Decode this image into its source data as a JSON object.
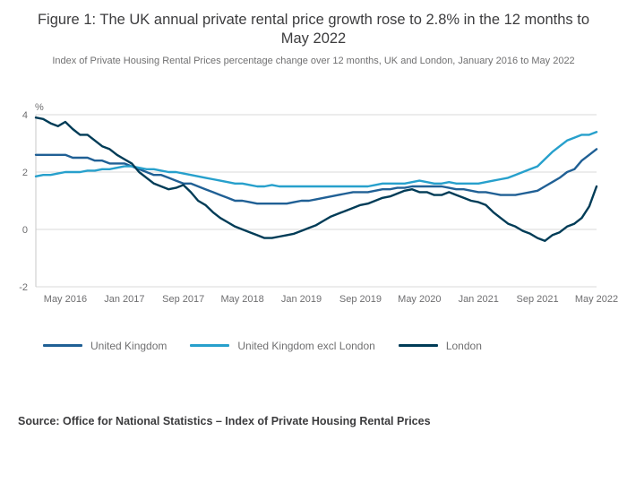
{
  "figure": {
    "source": "Source: Office for National Statistics – Index of Private Housing Rental Prices"
  },
  "chart_data": {
    "type": "line",
    "title": "Figure 1: The UK annual private rental price growth rose to 2.8% in the 12 months to May 2022",
    "subtitle": "Index of Private Housing Rental Prices percentage change over 12 months, UK and London, January 2016 to May 2022",
    "ylabel": "%",
    "ylim": [
      -2,
      4
    ],
    "yticks": [
      4,
      2,
      0,
      -2
    ],
    "grid": "horizontal",
    "legend_position": "bottom",
    "x_ticks": [
      "May 2016",
      "Jan 2017",
      "Sep 2017",
      "May 2018",
      "Jan 2019",
      "Sep 2019",
      "May 2020",
      "Jan 2021",
      "Sep 2021",
      "May 2022"
    ],
    "x": [
      "Jan 2016",
      "Feb 2016",
      "Mar 2016",
      "Apr 2016",
      "May 2016",
      "Jun 2016",
      "Jul 2016",
      "Aug 2016",
      "Sep 2016",
      "Oct 2016",
      "Nov 2016",
      "Dec 2016",
      "Jan 2017",
      "Feb 2017",
      "Mar 2017",
      "Apr 2017",
      "May 2017",
      "Jun 2017",
      "Jul 2017",
      "Aug 2017",
      "Sep 2017",
      "Oct 2017",
      "Nov 2017",
      "Dec 2017",
      "Jan 2018",
      "Feb 2018",
      "Mar 2018",
      "Apr 2018",
      "May 2018",
      "Jun 2018",
      "Jul 2018",
      "Aug 2018",
      "Sep 2018",
      "Oct 2018",
      "Nov 2018",
      "Dec 2018",
      "Jan 2019",
      "Feb 2019",
      "Mar 2019",
      "Apr 2019",
      "May 2019",
      "Jun 2019",
      "Jul 2019",
      "Aug 2019",
      "Sep 2019",
      "Oct 2019",
      "Nov 2019",
      "Dec 2019",
      "Jan 2020",
      "Feb 2020",
      "Mar 2020",
      "Apr 2020",
      "May 2020",
      "Jun 2020",
      "Jul 2020",
      "Aug 2020",
      "Sep 2020",
      "Oct 2020",
      "Nov 2020",
      "Dec 2020",
      "Jan 2021",
      "Feb 2021",
      "Mar 2021",
      "Apr 2021",
      "May 2021",
      "Jun 2021",
      "Jul 2021",
      "Aug 2021",
      "Sep 2021",
      "Oct 2021",
      "Nov 2021",
      "Dec 2021",
      "Jan 2022",
      "Feb 2022",
      "Mar 2022",
      "Apr 2022",
      "May 2022"
    ],
    "series": [
      {
        "name": "United Kingdom",
        "color": "#206095",
        "values": [
          2.6,
          2.6,
          2.6,
          2.6,
          2.6,
          2.5,
          2.5,
          2.5,
          2.4,
          2.4,
          2.3,
          2.3,
          2.3,
          2.2,
          2.1,
          2.0,
          1.9,
          1.9,
          1.8,
          1.7,
          1.6,
          1.6,
          1.5,
          1.4,
          1.3,
          1.2,
          1.1,
          1.0,
          1.0,
          0.95,
          0.9,
          0.9,
          0.9,
          0.9,
          0.9,
          0.95,
          1.0,
          1.0,
          1.05,
          1.1,
          1.15,
          1.2,
          1.25,
          1.3,
          1.3,
          1.3,
          1.35,
          1.4,
          1.4,
          1.45,
          1.45,
          1.5,
          1.5,
          1.5,
          1.5,
          1.5,
          1.45,
          1.4,
          1.4,
          1.35,
          1.3,
          1.3,
          1.25,
          1.2,
          1.2,
          1.2,
          1.25,
          1.3,
          1.35,
          1.5,
          1.65,
          1.8,
          2.0,
          2.1,
          2.4,
          2.6,
          2.8
        ]
      },
      {
        "name": "United Kingdom excl London",
        "color": "#27a0cc",
        "values": [
          1.85,
          1.9,
          1.9,
          1.95,
          2.0,
          2.0,
          2.0,
          2.05,
          2.05,
          2.1,
          2.1,
          2.15,
          2.2,
          2.2,
          2.15,
          2.1,
          2.1,
          2.05,
          2.0,
          2.0,
          1.95,
          1.9,
          1.85,
          1.8,
          1.75,
          1.7,
          1.65,
          1.6,
          1.6,
          1.55,
          1.5,
          1.5,
          1.55,
          1.5,
          1.5,
          1.5,
          1.5,
          1.5,
          1.5,
          1.5,
          1.5,
          1.5,
          1.5,
          1.5,
          1.5,
          1.5,
          1.55,
          1.6,
          1.6,
          1.6,
          1.6,
          1.65,
          1.7,
          1.65,
          1.6,
          1.6,
          1.65,
          1.6,
          1.6,
          1.6,
          1.6,
          1.65,
          1.7,
          1.75,
          1.8,
          1.9,
          2.0,
          2.1,
          2.2,
          2.45,
          2.7,
          2.9,
          3.1,
          3.2,
          3.3,
          3.3,
          3.4
        ]
      },
      {
        "name": "London",
        "color": "#003c57",
        "values": [
          3.9,
          3.85,
          3.7,
          3.6,
          3.75,
          3.5,
          3.3,
          3.3,
          3.1,
          2.9,
          2.8,
          2.6,
          2.45,
          2.3,
          2.0,
          1.8,
          1.6,
          1.5,
          1.4,
          1.45,
          1.55,
          1.3,
          1.0,
          0.85,
          0.6,
          0.4,
          0.25,
          0.1,
          0.0,
          -0.1,
          -0.2,
          -0.3,
          -0.3,
          -0.25,
          -0.2,
          -0.15,
          -0.05,
          0.05,
          0.15,
          0.3,
          0.45,
          0.55,
          0.65,
          0.75,
          0.85,
          0.9,
          1.0,
          1.1,
          1.15,
          1.25,
          1.35,
          1.4,
          1.3,
          1.3,
          1.2,
          1.2,
          1.3,
          1.2,
          1.1,
          1.0,
          0.95,
          0.85,
          0.6,
          0.4,
          0.2,
          0.1,
          -0.05,
          -0.15,
          -0.3,
          -0.4,
          -0.2,
          -0.1,
          0.1,
          0.2,
          0.4,
          0.8,
          1.5
        ]
      }
    ]
  }
}
